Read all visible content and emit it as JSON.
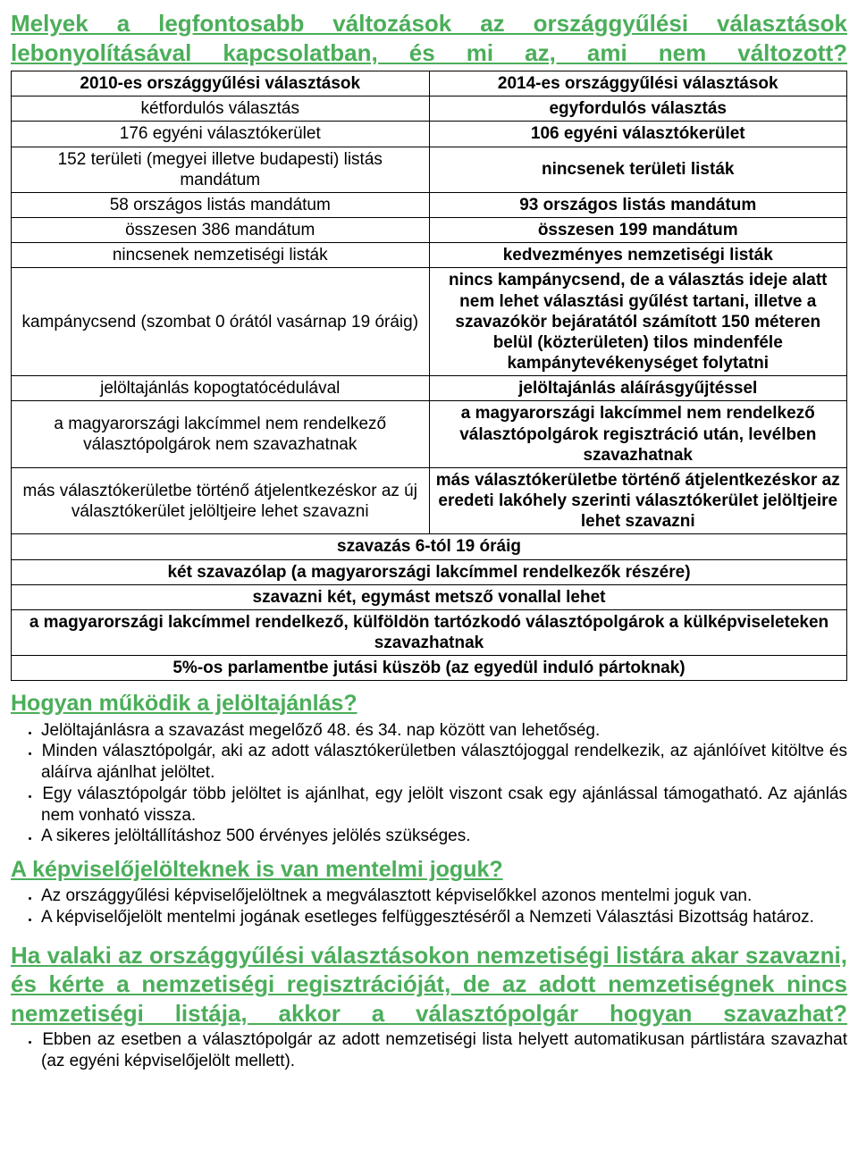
{
  "colors": {
    "accent": "#4bae5a",
    "border": "#000000",
    "text": "#000000",
    "background": "#ffffff"
  },
  "typography": {
    "font_family": "Arial",
    "base_size": 19,
    "heading1_size": 26,
    "heading2_size": 25
  },
  "heading_main": "Melyek a legfontosabb változások az országgyűlési választások lebonyolításával kapcsolatban, és mi az, ami nem változott?",
  "table": {
    "header_left": "2010-es országgyűlési választások",
    "header_right": "2014-es országgyűlési választások",
    "rows": [
      {
        "left": "kétfordulós választás",
        "right": "egyfordulós választás"
      },
      {
        "left": "176 egyéni választókerület",
        "right": "106 egyéni választókerület"
      },
      {
        "left": "152 területi (megyei illetve budapesti) listás mandátum",
        "right": "nincsenek területi listák"
      },
      {
        "left": "58 országos listás mandátum",
        "right": "93 országos listás mandátum"
      },
      {
        "left": "összesen 386 mandátum",
        "right": "összesen 199 mandátum"
      },
      {
        "left": "nincsenek nemzetiségi listák",
        "right": "kedvezményes nemzetiségi listák"
      },
      {
        "left": "kampánycsend (szombat 0 órától vasárnap 19 óráig)",
        "right": "nincs kampánycsend, de a választás ideje alatt nem lehet választási gyűlést tartani, illetve a szavazókör bejáratától számított 150 méteren belül (közterületen) tilos mindenféle kampánytevékenységet folytatni"
      },
      {
        "left": "jelöltajánlás kopogtatócédulával",
        "right": "jelöltajánlás aláírásgyűjtéssel"
      },
      {
        "left": "a magyarországi lakcímmel nem rendelkező választópolgárok nem szavazhatnak",
        "right": "a magyarországi lakcímmel nem rendelkező választópolgárok regisztráció után, levélben szavazhatnak"
      },
      {
        "left": "más választókerületbe történő átjelentkezéskor az új választókerület jelöltjeire lehet szavazni",
        "right": "más választókerületbe történő átjelentkezéskor az eredeti lakóhely szerinti választókerület jelöltjeire lehet szavazni"
      }
    ],
    "full_rows": [
      "szavazás 6-tól 19 óráig",
      "két szavazólap (a magyarországi lakcímmel rendelkezők részére)",
      "szavazni két, egymást metsző vonallal lehet",
      "a magyarországi lakcímmel rendelkező, külföldön tartózkodó választópolgárok a külképviseleteken szavazhatnak",
      "5%-os parlamentbe jutási küszöb (az egyedül induló pártoknak)"
    ]
  },
  "section2_heading": "Hogyan működik a jelöltajánlás?",
  "section2_items": [
    "Jelöltajánlásra a szavazást megelőző 48. és 34. nap között van lehetőség.",
    "Minden választópolgár, aki az adott választókerületben választójoggal rendelkezik, az ajánlóívet kitöltve és aláírva ajánlhat jelöltet.",
    "Egy választópolgár több jelöltet is ajánlhat, egy jelölt viszont csak egy ajánlással támogatható. Az ajánlás nem vonható vissza.",
    "A sikeres jelöltállításhoz 500 érvényes jelölés szükséges."
  ],
  "section3_heading": "A képviselőjelölteknek is van mentelmi joguk?",
  "section3_items": [
    "Az országgyűlési képviselőjelöltnek a megválasztott képviselőkkel azonos mentelmi joguk van.",
    "A képviselőjelölt mentelmi jogának esetleges felfüggesztéséről a Nemzeti Választási Bizottság határoz."
  ],
  "section4_heading": "Ha valaki az országgyűlési választásokon nemzetiségi listára akar szavazni, és kérte a nemzetiségi regisztrációját, de az adott nemzetiségnek nincs nemzetiségi listája, akkor a választópolgár hogyan szavazhat?",
  "section4_items": [
    "Ebben az esetben a választópolgár az adott nemzetiségi lista helyett automatikusan pártlistára szavazhat (az egyéni képviselőjelölt mellett)."
  ]
}
